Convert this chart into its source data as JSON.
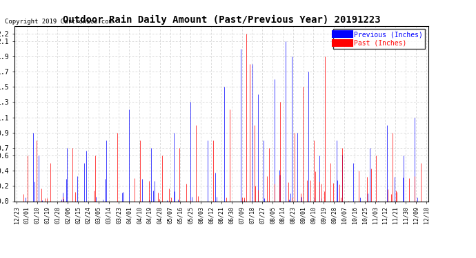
{
  "title": "Outdoor Rain Daily Amount (Past/Previous Year) 20191223",
  "copyright": "Copyright 2019 Cartronics.com",
  "legend_previous": "Previous (Inches)",
  "legend_past": "Past (Inches)",
  "ylabel_ticks": [
    0.0,
    0.2,
    0.4,
    0.6,
    0.7,
    0.9,
    1.1,
    1.3,
    1.5,
    1.7,
    1.9,
    2.1,
    2.2
  ],
  "ylim": [
    0.0,
    2.3
  ],
  "bg_color": "#ffffff",
  "grid_color": "#cccccc",
  "color_previous": "blue",
  "color_past": "red",
  "n_points": 366,
  "x_tick_labels": [
    "12/23",
    "01/01",
    "01/10",
    "01/19",
    "01/28",
    "02/06",
    "02/15",
    "02/24",
    "03/05",
    "03/14",
    "03/23",
    "04/01",
    "04/10",
    "04/19",
    "04/28",
    "05/07",
    "05/16",
    "05/25",
    "06/03",
    "06/12",
    "06/21",
    "06/30",
    "07/09",
    "07/18",
    "07/27",
    "08/05",
    "08/14",
    "08/23",
    "09/01",
    "09/10",
    "09/19",
    "09/28",
    "10/07",
    "10/16",
    "10/25",
    "11/03",
    "11/12",
    "11/21",
    "11/30",
    "12/09",
    "12/18"
  ]
}
